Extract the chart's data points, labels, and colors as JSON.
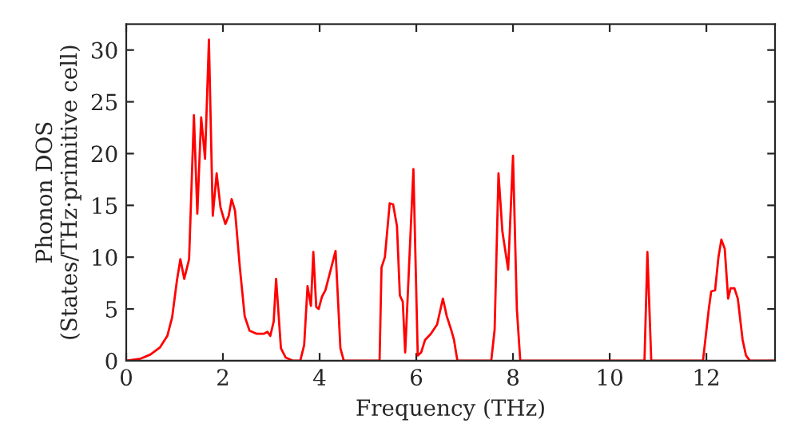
{
  "chart_data": {
    "type": "line",
    "xlabel": "Frequency (THz)",
    "ylabel": "Phonon DOS\n(States/THz·primitive cell)",
    "xlim": [
      0,
      13.42
    ],
    "ylim": [
      0,
      32.5
    ],
    "xticks": [
      0,
      2,
      4,
      6,
      8,
      10,
      12
    ],
    "yticks": [
      0,
      5,
      10,
      15,
      20,
      25,
      30
    ],
    "grid": false,
    "legend": false,
    "marker": "none",
    "line_style": "solid",
    "series": [
      {
        "color": "#ff0000",
        "x": [
          0,
          0.3,
          0.5,
          0.7,
          0.85,
          0.95,
          1.05,
          1.12,
          1.2,
          1.3,
          1.4,
          1.47,
          1.55,
          1.63,
          1.71,
          1.79,
          1.87,
          1.95,
          2.05,
          2.12,
          2.18,
          2.25,
          2.35,
          2.45,
          2.55,
          2.7,
          2.85,
          2.92,
          2.98,
          3.05,
          3.1,
          3.2,
          3.3,
          3.45,
          3.6,
          3.68,
          3.75,
          3.82,
          3.87,
          3.93,
          3.98,
          4.05,
          4.12,
          4.33,
          4.43,
          4.5,
          5.24,
          5.28,
          5.35,
          5.45,
          5.52,
          5.6,
          5.66,
          5.72,
          5.77,
          5.94,
          6.03,
          6.1,
          6.18,
          6.3,
          6.43,
          6.55,
          6.63,
          6.72,
          6.78,
          6.85,
          7.55,
          7.62,
          7.7,
          7.78,
          7.9,
          8.0,
          8.08,
          8.15,
          10.72,
          10.78,
          10.86,
          11.93,
          12.05,
          12.1,
          12.18,
          12.25,
          12.31,
          12.38,
          12.45,
          12.5,
          12.58,
          12.65,
          12.75,
          12.82,
          12.9,
          13.42
        ],
        "values": [
          0,
          0.2,
          0.6,
          1.3,
          2.4,
          4.2,
          7.8,
          9.8,
          7.9,
          9.8,
          23.7,
          14.2,
          23.5,
          19.5,
          31,
          14,
          18.1,
          14.8,
          13.2,
          14,
          15.6,
          14.5,
          9,
          4.3,
          2.9,
          2.6,
          2.6,
          2.8,
          2.4,
          3.8,
          7.9,
          1.2,
          0.3,
          0,
          0,
          1.5,
          7.2,
          5.3,
          10.5,
          5.2,
          5,
          6.2,
          6.8,
          10.6,
          1.2,
          0,
          0,
          9,
          10,
          15.2,
          15.1,
          13,
          6.3,
          5.7,
          0.8,
          18.5,
          0.5,
          0.8,
          2,
          2.6,
          3.5,
          6,
          4.3,
          3,
          2,
          0,
          0,
          3,
          18.1,
          12.5,
          8.8,
          19.8,
          5,
          0,
          0,
          10.5,
          0,
          0,
          5,
          6.7,
          6.8,
          10,
          11.7,
          10.8,
          6,
          7,
          7,
          6,
          2,
          0.5,
          0,
          0
        ]
      }
    ]
  }
}
